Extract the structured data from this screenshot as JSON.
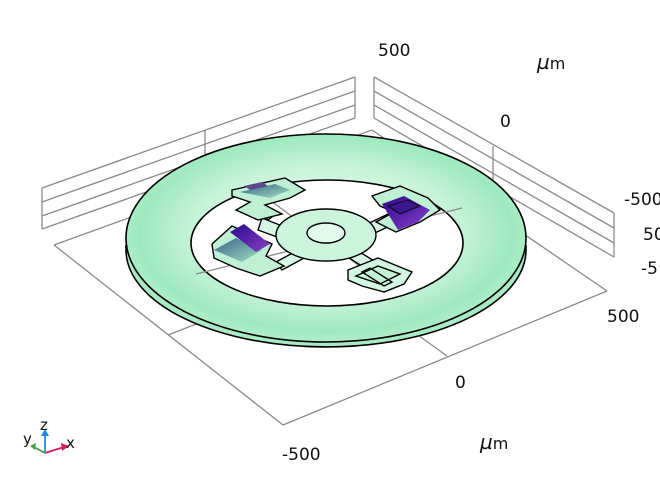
{
  "axes": {
    "top_tick": "500",
    "top_unit_symbol": "µ",
    "top_unit_rest": "m",
    "right_upper_tick": "0",
    "right_tick_a": "-500",
    "right_tick_b": "50",
    "right_tick_c": "-5",
    "front_right_tick": "500",
    "front_mid_tick": "0",
    "front_left_tick": "-500",
    "bottom_unit_symbol": "µ",
    "bottom_unit_rest": "m"
  },
  "triad": {
    "z": "z",
    "y": "y",
    "x": "x"
  },
  "colors": {
    "ring_light": "#d9f7e6",
    "ring_mid": "#a6ecc3",
    "ring_edge": "#000000",
    "grid": "#8a8a8a",
    "spring_violet": "#5a1ca8",
    "spring_teal": "#4c8c7e",
    "triad_x": "#d81b60",
    "triad_y": "#43a047",
    "triad_z": "#1e88e5"
  }
}
